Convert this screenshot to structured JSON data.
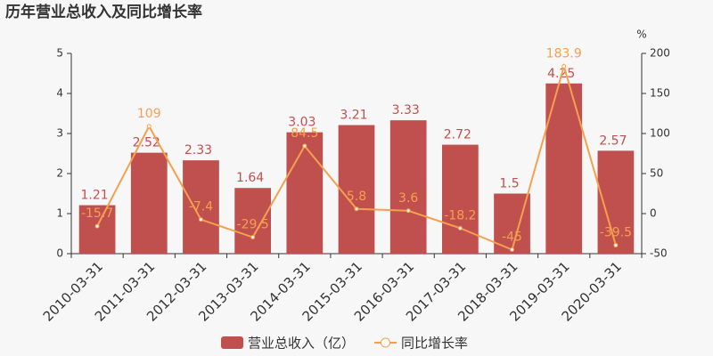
{
  "chart_data": {
    "type": "bar",
    "title": "历年营业总收入及同比增长率",
    "y2label": "%",
    "categories": [
      "2010-03-31",
      "2011-03-31",
      "2012-03-31",
      "2013-03-31",
      "2014-03-31",
      "2015-03-31",
      "2016-03-31",
      "2017-03-31",
      "2018-03-31",
      "2019-03-31",
      "2020-03-31"
    ],
    "series": [
      {
        "name": "营业总收入（亿）",
        "type": "bar",
        "color": "#c0504d",
        "values": [
          1.21,
          2.52,
          2.33,
          1.64,
          3.03,
          3.21,
          3.33,
          2.72,
          1.5,
          4.25,
          2.57
        ]
      },
      {
        "name": "同比增长率",
        "type": "line",
        "axis": "y2",
        "color": "#f5a04f",
        "values": [
          -15.7,
          109,
          -7.4,
          -29.5,
          84.5,
          5.8,
          3.6,
          -18.2,
          -45,
          183.9,
          -39.5
        ]
      }
    ],
    "ylim": [
      0,
      5
    ],
    "yticks": [
      0,
      1,
      2,
      3,
      4,
      5
    ],
    "y2lim": [
      -50,
      200
    ],
    "y2ticks": [
      -50,
      0,
      50,
      100,
      150,
      200
    ]
  }
}
